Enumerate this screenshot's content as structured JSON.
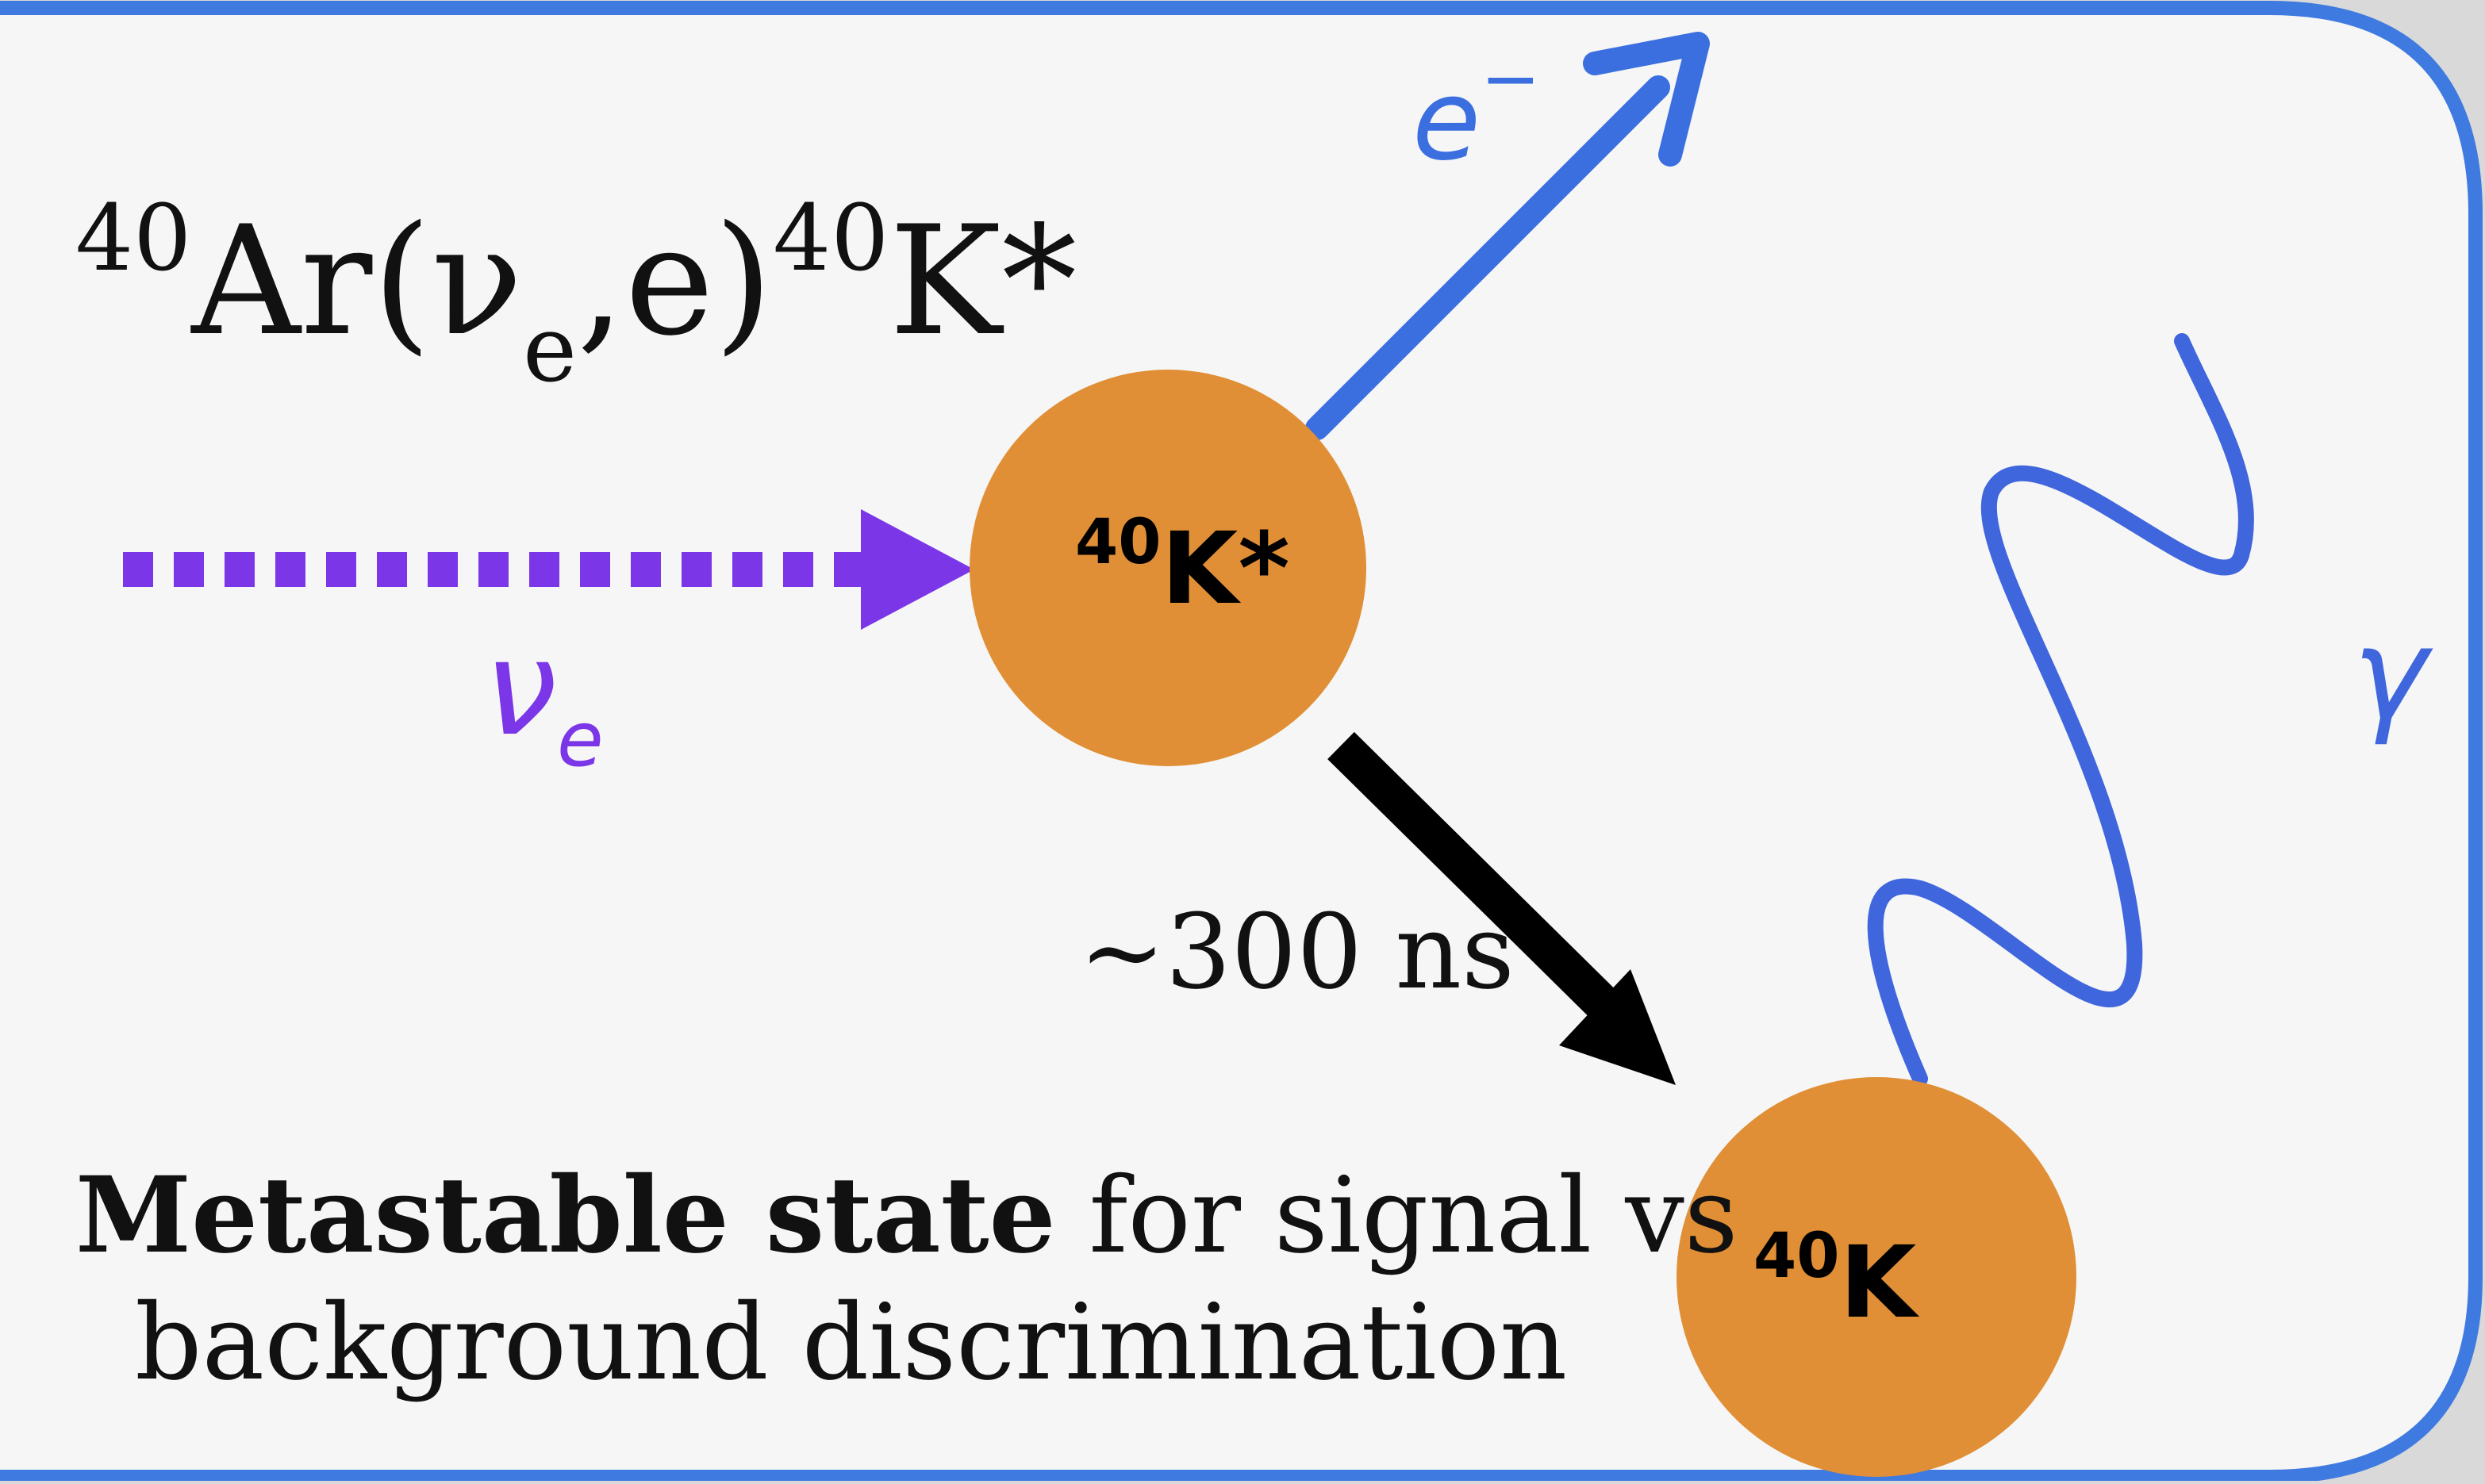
{
  "reaction": {
    "mass_ar": "40",
    "ar": "Ar(",
    "nu": "ν",
    "nu_sub": "e",
    "comma_e": ",e)",
    "mass_k": "40",
    "k_star": "K*"
  },
  "nucleus_excited": {
    "mass": "40",
    "symbol": "K*"
  },
  "nucleus_ground": {
    "mass": "40",
    "symbol": "K"
  },
  "labels": {
    "electron": "e",
    "electron_sup": "−",
    "neutrino": "ν",
    "neutrino_sub": "e",
    "gamma": "γ",
    "decay_time": "~300 ns"
  },
  "caption": {
    "bold": "Metastable state",
    "rest_line1": " for signal vs",
    "line2": "background discrimination"
  },
  "colors": {
    "panel_background": "#f6f6f6",
    "panel_border": "#3f7ae0",
    "nucleus": "#e08f36",
    "neutrino": "#7b36e8",
    "electron": "#3b6fe0",
    "gamma": "#3f66dc",
    "decay_arrow": "#000000"
  }
}
